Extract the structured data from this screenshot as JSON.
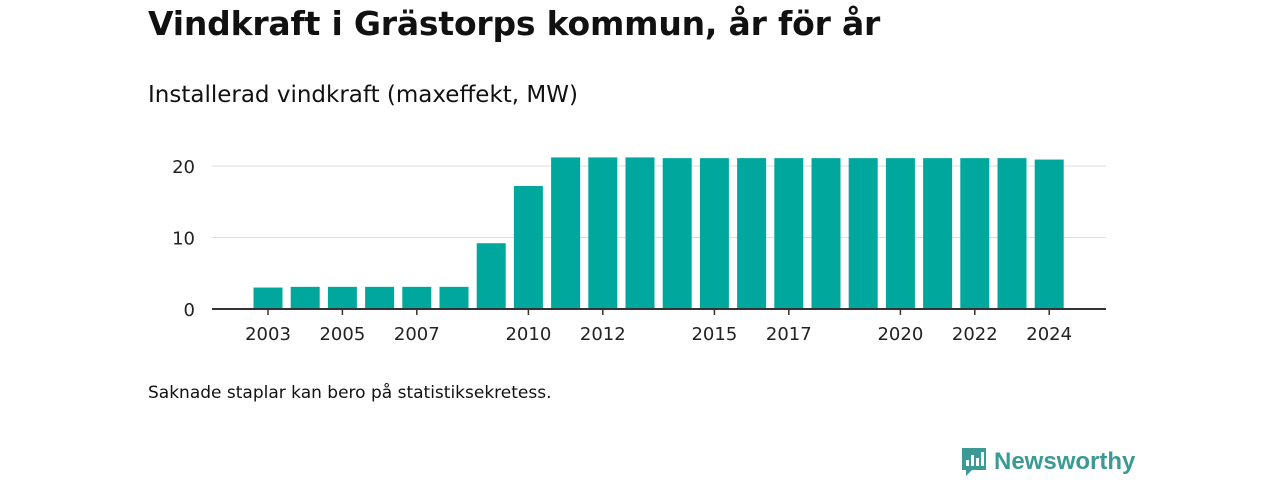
{
  "header": {
    "title": "Vindkraft i Grästorps kommun, år för år",
    "subtitle": "Installerad vindkraft (maxeffekt, MW)"
  },
  "footer": {
    "note": "Saknade staplar kan bero på statistiksekretess.",
    "brand": "Newsworthy"
  },
  "colors": {
    "bar": "#00a79d",
    "grid": "#dddddd",
    "axis": "#333333",
    "brand": "#3a9a94"
  },
  "chart_data": {
    "type": "bar",
    "x": [
      2003,
      2004,
      2005,
      2006,
      2007,
      2008,
      2009,
      2010,
      2011,
      2012,
      2013,
      2014,
      2015,
      2016,
      2017,
      2018,
      2019,
      2020,
      2021,
      2022,
      2023,
      2024
    ],
    "values": [
      3.0,
      3.1,
      3.1,
      3.1,
      3.1,
      3.1,
      9.2,
      17.2,
      21.2,
      21.2,
      21.2,
      21.1,
      21.1,
      21.1,
      21.1,
      21.1,
      21.1,
      21.1,
      21.1,
      21.1,
      21.1,
      20.9
    ],
    "xticks": [
      2003,
      2005,
      2007,
      2010,
      2012,
      2015,
      2017,
      2020,
      2022,
      2024
    ],
    "yticks": [
      0,
      10,
      20
    ],
    "ylim": [
      0,
      22
    ],
    "xlabel": "",
    "ylabel": "",
    "grid": true
  }
}
